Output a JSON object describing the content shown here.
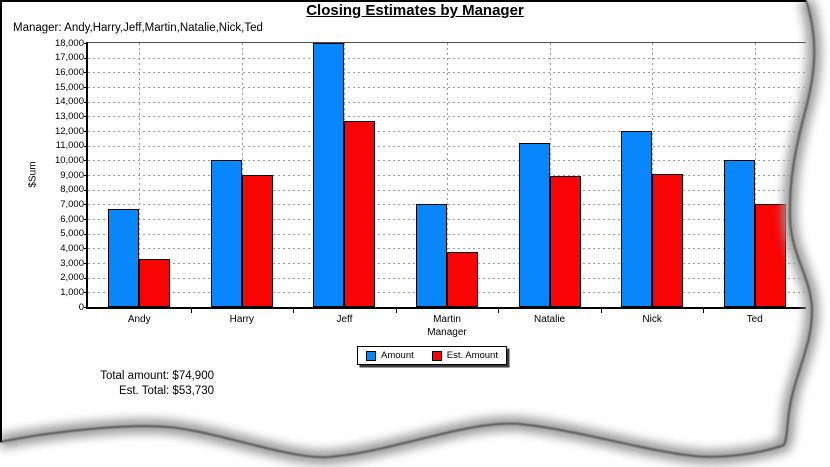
{
  "chart_data": {
    "type": "bar",
    "title": "Closing Estimates by Manager",
    "subtitle": "Manager: Andy,Harry,Jeff,Martin,Natalie,Nick,Ted",
    "categories": [
      "Andy",
      "Harry",
      "Jeff",
      "Martin",
      "Natalie",
      "Nick",
      "Ted"
    ],
    "series": [
      {
        "name": "Amount",
        "color": "#0886FB",
        "values": [
          6700,
          10000,
          18000,
          7000,
          11200,
          12000,
          10000
        ]
      },
      {
        "name": "Est. Amount",
        "color": "#F80404",
        "values": [
          3300,
          9000,
          12700,
          3730,
          8900,
          9100,
          7000
        ]
      }
    ],
    "xlabel": "Manager",
    "ylabel": "$Sum",
    "ylim": [
      0,
      18000
    ],
    "ytick_step": 1000,
    "grid": true,
    "gridline_color": "#999999",
    "legend_position": "bottom",
    "legend": [
      "Amount",
      "Est. Amount"
    ]
  },
  "totals": {
    "total_amount": "Total amount: $74,900",
    "est_total": "Est. Total: $53,730"
  },
  "decor": {
    "tear_shadow_color": "#9a9a9a",
    "tear_line_color": "#555555",
    "page_border_color": "#000000"
  }
}
